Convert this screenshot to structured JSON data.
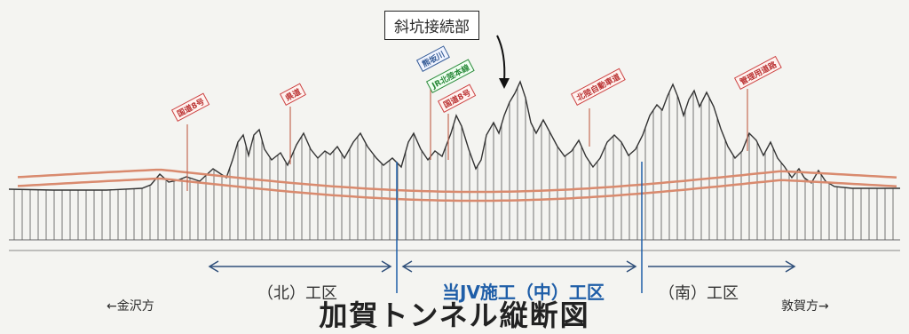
{
  "callout": "斜坑接続部",
  "title": "加賀トンネル縦断図",
  "sections": {
    "north": "（北）工区",
    "center": "当JV施工（中）工区",
    "south": "（南）工区"
  },
  "directions": {
    "left": "←金沢方",
    "right": "敦賀方→"
  },
  "km_marks": [
    "",
    "",
    "",
    "",
    "",
    "",
    "",
    "",
    "",
    "",
    ""
  ],
  "crossings": [
    {
      "text": "国道8号",
      "color": "red"
    },
    {
      "text": "県道",
      "color": "red"
    },
    {
      "text": "熊坂川",
      "color": "blue"
    },
    {
      "text": "JR北陸本線",
      "color": "green"
    },
    {
      "text": "国道8号",
      "color": "red"
    },
    {
      "text": "北陸自動車道",
      "color": "red"
    },
    {
      "text": "管理用道路",
      "color": "red"
    }
  ],
  "colors": {
    "terrain": "#3a3a3a",
    "tunnel": "#d98a6e",
    "section_arrow": "#355b96",
    "marker_line": "#1f5ea8"
  }
}
